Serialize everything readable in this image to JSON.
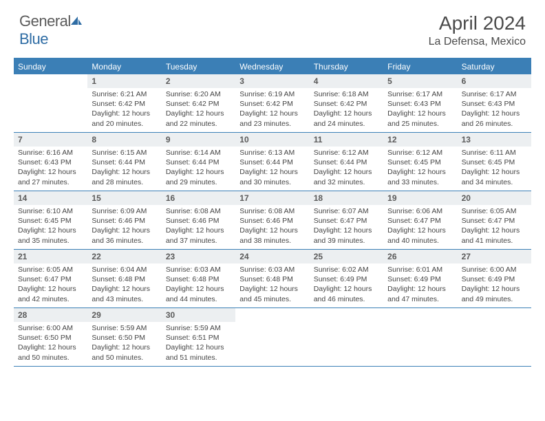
{
  "logo": {
    "text_general": "General",
    "text_blue": "Blue"
  },
  "title": "April 2024",
  "location": "La Defensa, Mexico",
  "colors": {
    "header_bg": "#3b7fb6",
    "header_text": "#ffffff",
    "daynum_bg": "#eceff1",
    "border": "#3b7fb6",
    "body_text": "#444444"
  },
  "day_headers": [
    "Sunday",
    "Monday",
    "Tuesday",
    "Wednesday",
    "Thursday",
    "Friday",
    "Saturday"
  ],
  "weeks": [
    [
      null,
      {
        "n": "1",
        "sr": "6:21 AM",
        "ss": "6:42 PM",
        "dl": "12 hours and 20 minutes."
      },
      {
        "n": "2",
        "sr": "6:20 AM",
        "ss": "6:42 PM",
        "dl": "12 hours and 22 minutes."
      },
      {
        "n": "3",
        "sr": "6:19 AM",
        "ss": "6:42 PM",
        "dl": "12 hours and 23 minutes."
      },
      {
        "n": "4",
        "sr": "6:18 AM",
        "ss": "6:42 PM",
        "dl": "12 hours and 24 minutes."
      },
      {
        "n": "5",
        "sr": "6:17 AM",
        "ss": "6:43 PM",
        "dl": "12 hours and 25 minutes."
      },
      {
        "n": "6",
        "sr": "6:17 AM",
        "ss": "6:43 PM",
        "dl": "12 hours and 26 minutes."
      }
    ],
    [
      {
        "n": "7",
        "sr": "6:16 AM",
        "ss": "6:43 PM",
        "dl": "12 hours and 27 minutes."
      },
      {
        "n": "8",
        "sr": "6:15 AM",
        "ss": "6:44 PM",
        "dl": "12 hours and 28 minutes."
      },
      {
        "n": "9",
        "sr": "6:14 AM",
        "ss": "6:44 PM",
        "dl": "12 hours and 29 minutes."
      },
      {
        "n": "10",
        "sr": "6:13 AM",
        "ss": "6:44 PM",
        "dl": "12 hours and 30 minutes."
      },
      {
        "n": "11",
        "sr": "6:12 AM",
        "ss": "6:44 PM",
        "dl": "12 hours and 32 minutes."
      },
      {
        "n": "12",
        "sr": "6:12 AM",
        "ss": "6:45 PM",
        "dl": "12 hours and 33 minutes."
      },
      {
        "n": "13",
        "sr": "6:11 AM",
        "ss": "6:45 PM",
        "dl": "12 hours and 34 minutes."
      }
    ],
    [
      {
        "n": "14",
        "sr": "6:10 AM",
        "ss": "6:45 PM",
        "dl": "12 hours and 35 minutes."
      },
      {
        "n": "15",
        "sr": "6:09 AM",
        "ss": "6:46 PM",
        "dl": "12 hours and 36 minutes."
      },
      {
        "n": "16",
        "sr": "6:08 AM",
        "ss": "6:46 PM",
        "dl": "12 hours and 37 minutes."
      },
      {
        "n": "17",
        "sr": "6:08 AM",
        "ss": "6:46 PM",
        "dl": "12 hours and 38 minutes."
      },
      {
        "n": "18",
        "sr": "6:07 AM",
        "ss": "6:47 PM",
        "dl": "12 hours and 39 minutes."
      },
      {
        "n": "19",
        "sr": "6:06 AM",
        "ss": "6:47 PM",
        "dl": "12 hours and 40 minutes."
      },
      {
        "n": "20",
        "sr": "6:05 AM",
        "ss": "6:47 PM",
        "dl": "12 hours and 41 minutes."
      }
    ],
    [
      {
        "n": "21",
        "sr": "6:05 AM",
        "ss": "6:47 PM",
        "dl": "12 hours and 42 minutes."
      },
      {
        "n": "22",
        "sr": "6:04 AM",
        "ss": "6:48 PM",
        "dl": "12 hours and 43 minutes."
      },
      {
        "n": "23",
        "sr": "6:03 AM",
        "ss": "6:48 PM",
        "dl": "12 hours and 44 minutes."
      },
      {
        "n": "24",
        "sr": "6:03 AM",
        "ss": "6:48 PM",
        "dl": "12 hours and 45 minutes."
      },
      {
        "n": "25",
        "sr": "6:02 AM",
        "ss": "6:49 PM",
        "dl": "12 hours and 46 minutes."
      },
      {
        "n": "26",
        "sr": "6:01 AM",
        "ss": "6:49 PM",
        "dl": "12 hours and 47 minutes."
      },
      {
        "n": "27",
        "sr": "6:00 AM",
        "ss": "6:49 PM",
        "dl": "12 hours and 49 minutes."
      }
    ],
    [
      {
        "n": "28",
        "sr": "6:00 AM",
        "ss": "6:50 PM",
        "dl": "12 hours and 50 minutes."
      },
      {
        "n": "29",
        "sr": "5:59 AM",
        "ss": "6:50 PM",
        "dl": "12 hours and 50 minutes."
      },
      {
        "n": "30",
        "sr": "5:59 AM",
        "ss": "6:51 PM",
        "dl": "12 hours and 51 minutes."
      },
      null,
      null,
      null,
      null
    ]
  ],
  "labels": {
    "sunrise": "Sunrise:",
    "sunset": "Sunset:",
    "daylight": "Daylight:"
  }
}
